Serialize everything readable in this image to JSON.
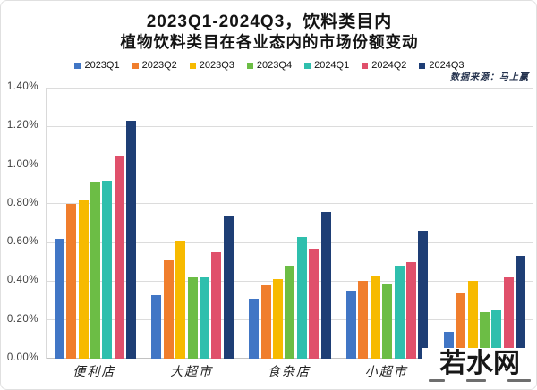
{
  "title": {
    "line1": "2023Q1-2024Q3，饮料类目内",
    "line2": "植物饮料类目在各业态内的市场份额变动"
  },
  "datasource": "数据来源：马上赢",
  "watermark": {
    "text": "若水网"
  },
  "chart_data": {
    "type": "bar",
    "title": "2023Q1-2024Q3，饮料类目内 植物饮料类目在各业态内的市场份额变动",
    "categories": [
      "便利店",
      "大超市",
      "食杂店",
      "小超市",
      ""
    ],
    "series": [
      {
        "name": "2023Q1",
        "color": "#4176C5",
        "values": [
          0.62,
          0.33,
          0.31,
          0.35,
          0.14
        ]
      },
      {
        "name": "2023Q2",
        "color": "#F07E2D",
        "values": [
          0.8,
          0.51,
          0.38,
          0.4,
          0.34
        ]
      },
      {
        "name": "2023Q3",
        "color": "#F7BA00",
        "values": [
          0.82,
          0.61,
          0.41,
          0.43,
          0.4
        ]
      },
      {
        "name": "2023Q4",
        "color": "#6CBD45",
        "values": [
          0.91,
          0.42,
          0.48,
          0.39,
          0.24
        ]
      },
      {
        "name": "2024Q1",
        "color": "#2FBFAD",
        "values": [
          0.92,
          0.42,
          0.63,
          0.48,
          0.25
        ]
      },
      {
        "name": "2024Q2",
        "color": "#E0506B",
        "values": [
          1.05,
          0.55,
          0.57,
          0.5,
          0.42
        ]
      },
      {
        "name": "2024Q3",
        "color": "#1E3E75",
        "values": [
          1.23,
          0.74,
          0.76,
          0.66,
          0.53
        ]
      }
    ],
    "xlabel": "",
    "ylabel": "",
    "unit": "%",
    "ylim": [
      0,
      1.4
    ],
    "ytick_values": [
      0,
      0.2,
      0.4,
      0.6,
      0.8,
      1.0,
      1.2,
      1.4
    ],
    "ytick_labels": [
      "0.00%",
      "0.20%",
      "0.40%",
      "0.60%",
      "0.80%",
      "1.00%",
      "1.20%",
      "1.40%"
    ],
    "grid": true,
    "legend_position": "top"
  }
}
